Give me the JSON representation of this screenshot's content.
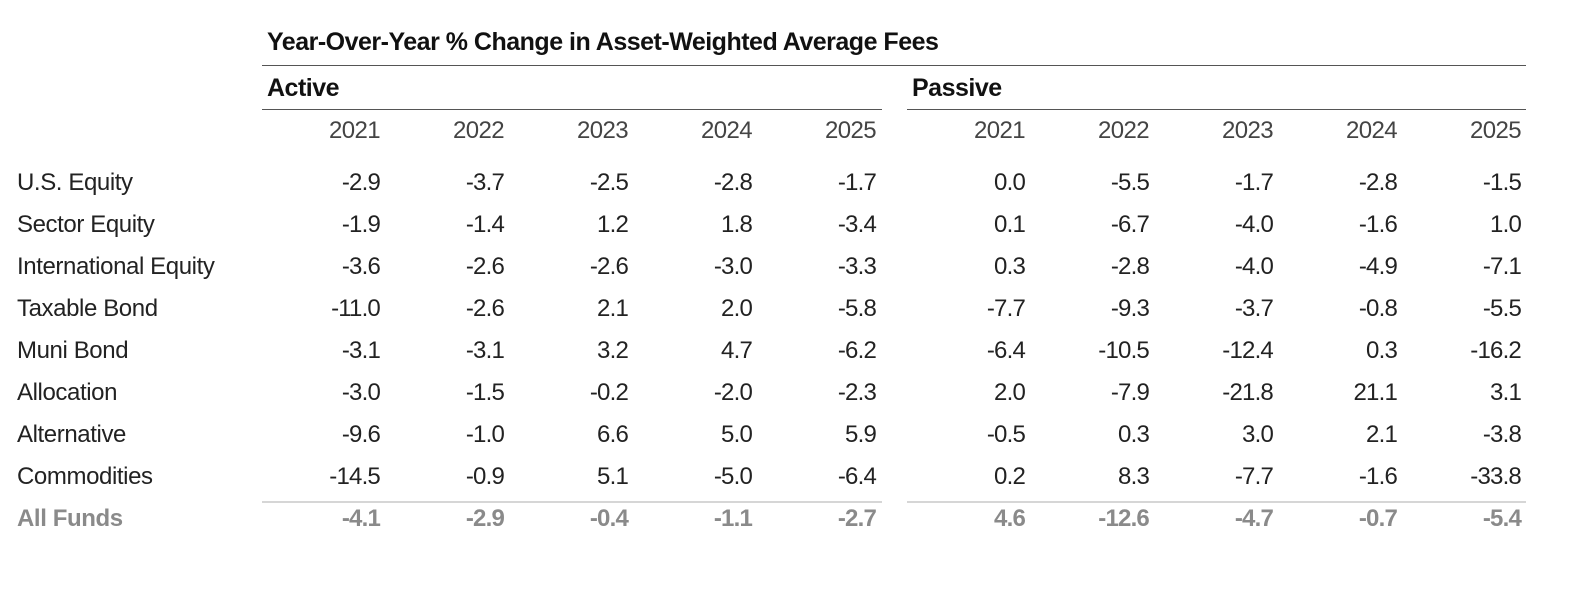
{
  "chart_data": {
    "type": "table",
    "title": "Year-Over-Year % Change in Asset-Weighted Average Fees",
    "groups": [
      "Active",
      "Passive"
    ],
    "years": [
      "2021",
      "2022",
      "2023",
      "2024",
      "2025"
    ],
    "rows": [
      {
        "label": "U.S. Equity",
        "active": [
          "-2.9",
          "-3.7",
          "-2.5",
          "-2.8",
          "-1.7"
        ],
        "passive": [
          "0.0",
          "-5.5",
          "-1.7",
          "-2.8",
          "-1.5"
        ]
      },
      {
        "label": "Sector Equity",
        "active": [
          "-1.9",
          "-1.4",
          "1.2",
          "1.8",
          "-3.4"
        ],
        "passive": [
          "0.1",
          "-6.7",
          "-4.0",
          "-1.6",
          "1.0"
        ]
      },
      {
        "label": "International Equity",
        "active": [
          "-3.6",
          "-2.6",
          "-2.6",
          "-3.0",
          "-3.3"
        ],
        "passive": [
          "0.3",
          "-2.8",
          "-4.0",
          "-4.9",
          "-7.1"
        ]
      },
      {
        "label": "Taxable Bond",
        "active": [
          "-11.0",
          "-2.6",
          "2.1",
          "2.0",
          "-5.8"
        ],
        "passive": [
          "-7.7",
          "-9.3",
          "-3.7",
          "-0.8",
          "-5.5"
        ]
      },
      {
        "label": "Muni Bond",
        "active": [
          "-3.1",
          "-3.1",
          "3.2",
          "4.7",
          "-6.2"
        ],
        "passive": [
          "-6.4",
          "-10.5",
          "-12.4",
          "0.3",
          "-16.2"
        ]
      },
      {
        "label": "Allocation",
        "active": [
          "-3.0",
          "-1.5",
          "-0.2",
          "-2.0",
          "-2.3"
        ],
        "passive": [
          "2.0",
          "-7.9",
          "-21.8",
          "21.1",
          "3.1"
        ]
      },
      {
        "label": "Alternative",
        "active": [
          "-9.6",
          "-1.0",
          "6.6",
          "5.0",
          "5.9"
        ],
        "passive": [
          "-0.5",
          "0.3",
          "3.0",
          "2.1",
          "-3.8"
        ]
      },
      {
        "label": "Commodities",
        "active": [
          "-14.5",
          "-0.9",
          "5.1",
          "-5.0",
          "-6.4"
        ],
        "passive": [
          "0.2",
          "8.3",
          "-7.7",
          "-1.6",
          "-33.8"
        ]
      }
    ],
    "total": {
      "label": "All Funds",
      "active": [
        "-4.1",
        "-2.9",
        "-0.4",
        "-1.1",
        "-2.7"
      ],
      "passive": [
        "4.6",
        "-12.6",
        "-4.7",
        "-0.7",
        "-5.4"
      ]
    }
  },
  "colors": {
    "text": "#222222",
    "total_text": "#8a8a8a",
    "rule": "#555555",
    "total_rule": "#d6d6d6"
  }
}
